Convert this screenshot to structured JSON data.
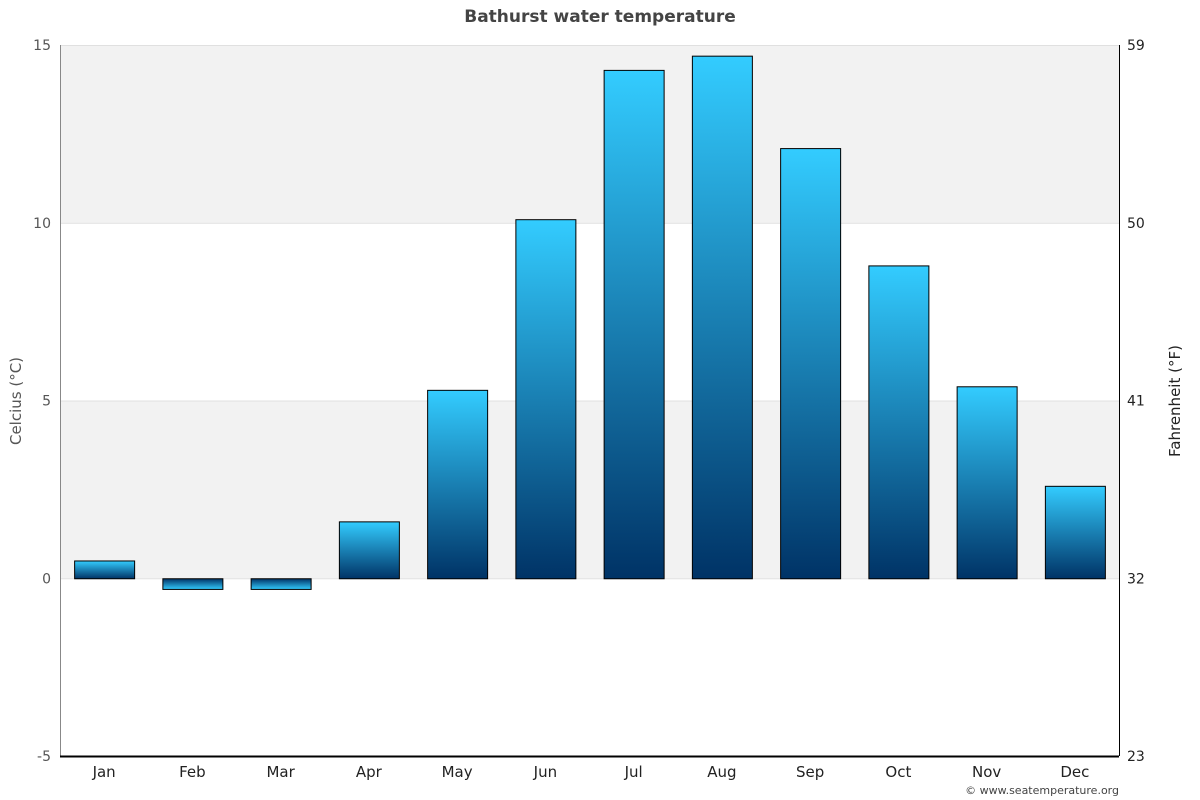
{
  "title": "Bathurst water temperature",
  "footer": "© www.seatemperature.org",
  "axes": {
    "left_label": "Celcius (°C)",
    "right_label": "Fahrenheit (°F)",
    "left_ticks": [
      "15",
      "10",
      "5",
      "0",
      "-5"
    ],
    "right_ticks": [
      "59",
      "50",
      "41",
      "32",
      "23"
    ]
  },
  "colors": {
    "bar_top": "#33ccff",
    "bar_bottom": "#003366",
    "band": "#f2f2f2",
    "grid": "#e0e0e0",
    "bar_border": "#000000",
    "title": "#444444"
  },
  "chart_data": {
    "type": "bar",
    "title": "Bathurst water temperature",
    "xlabel": "",
    "ylabel": "Celcius (°C)",
    "ylabel_secondary": "Fahrenheit (°F)",
    "categories": [
      "Jan",
      "Feb",
      "Mar",
      "Apr",
      "May",
      "Jun",
      "Jul",
      "Aug",
      "Sep",
      "Oct",
      "Nov",
      "Dec"
    ],
    "values": [
      0.5,
      -0.3,
      -0.3,
      1.6,
      5.3,
      10.1,
      14.3,
      14.7,
      12.1,
      8.8,
      5.4,
      2.6
    ],
    "ylim": [
      -5,
      15
    ],
    "ylim_secondary": [
      23,
      59
    ],
    "yticks": [
      -5,
      0,
      5,
      10,
      15
    ],
    "yticks_secondary": [
      23,
      32,
      41,
      50,
      59
    ],
    "grid": true,
    "legend": null
  }
}
